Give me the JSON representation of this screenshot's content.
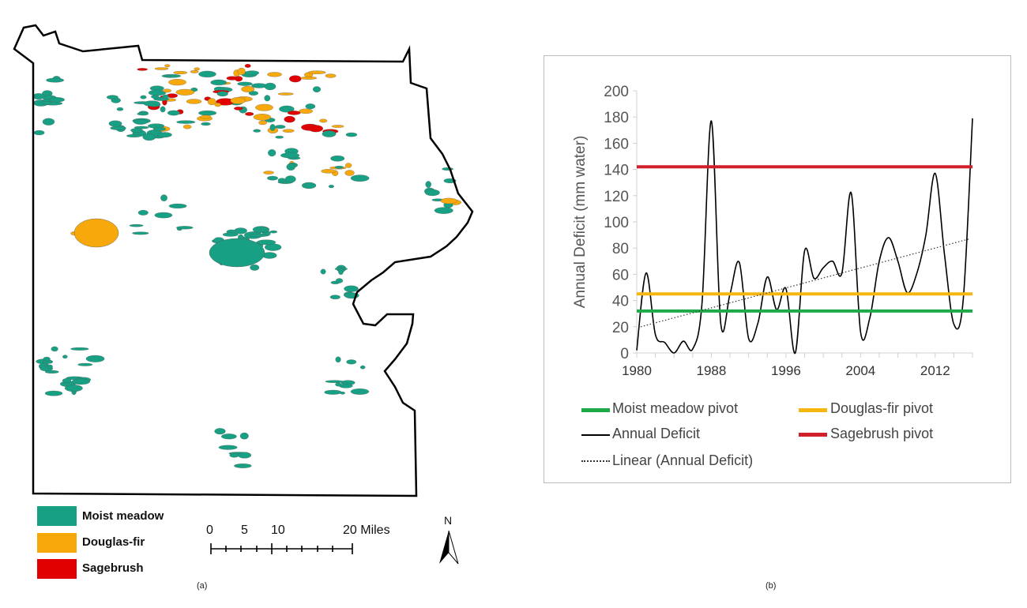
{
  "map": {
    "legend": [
      {
        "label": "Moist meadow",
        "color": "#17a083"
      },
      {
        "label": "Douglas-fir",
        "color": "#f7a80a"
      },
      {
        "label": "Sagebrush",
        "color": "#e00000"
      }
    ],
    "scale_labels": [
      "0",
      "5",
      "10",
      "20 Miles"
    ],
    "north_label": "N",
    "caption": "(a)"
  },
  "chart_caption": "(b)",
  "chart_data": {
    "type": "line",
    "ylabel": "Annual Deficit (mm water)",
    "xlabel": "",
    "ylim": [
      0,
      200
    ],
    "xlim": [
      1980,
      2016
    ],
    "yticks": [
      "0",
      "20",
      "40",
      "60",
      "80",
      "100",
      "120",
      "140",
      "160",
      "180",
      "200"
    ],
    "xticks": [
      "1980",
      "1988",
      "1996",
      "2004",
      "2012"
    ],
    "x": [
      1980,
      1981,
      1982,
      1983,
      1984,
      1985,
      1986,
      1987,
      1988,
      1989,
      1990,
      1991,
      1992,
      1993,
      1994,
      1995,
      1996,
      1997,
      1998,
      1999,
      2000,
      2001,
      2002,
      2003,
      2004,
      2005,
      2006,
      2007,
      2008,
      2009,
      2010,
      2011,
      2012,
      2013,
      2014,
      2015,
      2016
    ],
    "series": [
      {
        "name": "Annual Deficit",
        "color": "#000000",
        "values": [
          2,
          61,
          14,
          8,
          0,
          9,
          3,
          38,
          177,
          23,
          45,
          69,
          11,
          23,
          58,
          33,
          49,
          0,
          78,
          57,
          65,
          70,
          61,
          122,
          16,
          27,
          70,
          88,
          70,
          46,
          60,
          90,
          137,
          75,
          22,
          40,
          179
        ]
      },
      {
        "name": "Moist meadow pivot",
        "color": "#1faa4a",
        "constant": 32
      },
      {
        "name": "Douglas-fir pivot",
        "color": "#f5b60f",
        "constant": 45
      },
      {
        "name": "Sagebrush pivot",
        "color": "#d0202a",
        "constant": 142
      },
      {
        "name": "Linear (Annual Deficit)",
        "color": "#333333",
        "trend": [
          20,
          87
        ]
      }
    ],
    "legend": [
      "Moist meadow pivot",
      "Douglas-fir pivot",
      "Annual Deficit",
      "Sagebrush pivot",
      "Linear (Annual Deficit)"
    ],
    "legend_position": "bottom"
  }
}
